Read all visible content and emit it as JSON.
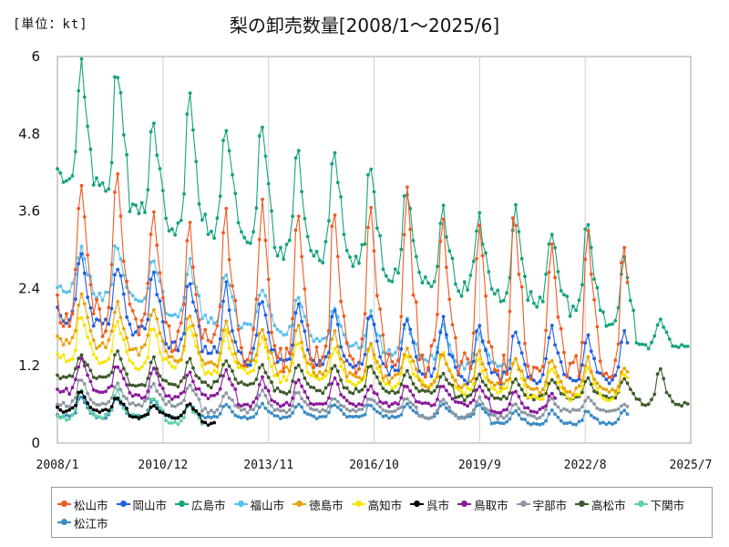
{
  "chart_data": {
    "type": "line",
    "title": "梨の卸売数量[2008/1～2025/6]",
    "unit_label": "[単位：kt]",
    "ylim": [
      0,
      6
    ],
    "y_ticks": [
      "0",
      "1.2",
      "2.4",
      "3.6",
      "4.8",
      "6"
    ],
    "y_tick_values": [
      0,
      1.2,
      2.4,
      3.6,
      4.8,
      6
    ],
    "x_ticks": [
      "2008/1",
      "2010/12",
      "2013/11",
      "2016/10",
      "2019/9",
      "2022/8",
      "2025/7"
    ],
    "x_tick_months": [
      0,
      35,
      70,
      105,
      140,
      175,
      210
    ],
    "x_range_months": [
      0,
      210
    ],
    "grid": "vertical",
    "legend_position": "bottom",
    "series": [
      {
        "name": "松山市",
        "color": "#f05a22",
        "start": 0,
        "end": 189,
        "yearly_peak": [
          3.9,
          4.2,
          3.6,
          3.4,
          3.6,
          3.6,
          3.4,
          3.6,
          3.7,
          3.8,
          3.6,
          3.4,
          3.6,
          3.1,
          3.2,
          3.0
        ],
        "yearly_base": [
          1.9,
          1.9,
          1.8,
          1.6,
          1.5,
          1.4,
          1.3,
          1.3,
          1.3,
          1.3,
          1.2,
          1.2,
          1.1,
          1.1,
          1.1,
          1.0
        ]
      },
      {
        "name": "岡山市",
        "color": "#1f5fe0",
        "start": 0,
        "end": 189,
        "yearly_peak": [
          2.9,
          2.8,
          2.7,
          2.5,
          2.4,
          2.3,
          2.1,
          2.0,
          2.0,
          2.0,
          1.9,
          1.9,
          1.8,
          1.8,
          1.7,
          1.7
        ],
        "yearly_base": [
          1.9,
          1.8,
          1.7,
          1.5,
          1.4,
          1.3,
          1.3,
          1.2,
          1.2,
          1.1,
          1.1,
          1.0,
          1.0,
          1.0,
          1.0,
          1.0
        ]
      },
      {
        "name": "広島市",
        "color": "#14a37a",
        "start": 0,
        "end": 209,
        "yearly_peak": [
          5.8,
          5.8,
          4.9,
          5.3,
          4.9,
          5.0,
          4.6,
          4.6,
          4.3,
          3.9,
          3.6,
          3.5,
          3.6,
          3.3,
          3.4,
          2.8,
          1.9,
          1.8
        ],
        "yearly_base": [
          4.0,
          3.9,
          3.6,
          3.4,
          3.3,
          3.1,
          2.9,
          2.9,
          2.8,
          2.6,
          2.5,
          2.4,
          2.3,
          2.2,
          2.1,
          1.9,
          1.5,
          1.5
        ]
      },
      {
        "name": "福山市",
        "color": "#5bc0eb",
        "start": 0,
        "end": 150,
        "yearly_peak": [
          3.0,
          3.1,
          2.9,
          2.8,
          2.6,
          2.4,
          2.3,
          2.1,
          2.0,
          1.9,
          1.8,
          1.7,
          1.6
        ],
        "yearly_base": [
          2.4,
          2.3,
          2.2,
          2.0,
          1.9,
          1.8,
          1.7,
          1.6,
          1.5,
          1.4,
          1.3,
          1.2,
          1.2
        ]
      },
      {
        "name": "徳島市",
        "color": "#e8a20a",
        "start": 0,
        "end": 189,
        "yearly_peak": [
          2.3,
          2.2,
          2.1,
          2.0,
          1.9,
          1.8,
          1.8,
          1.7,
          1.6,
          1.5,
          1.4,
          1.4,
          1.3,
          1.3,
          1.3,
          1.2
        ],
        "yearly_base": [
          1.6,
          1.5,
          1.4,
          1.3,
          1.2,
          1.2,
          1.1,
          1.1,
          1.0,
          1.0,
          0.9,
          0.9,
          0.9,
          0.8,
          0.8,
          0.8
        ]
      },
      {
        "name": "高知市",
        "color": "#f5e600",
        "start": 0,
        "end": 189,
        "yearly_peak": [
          2.0,
          1.9,
          1.8,
          1.8,
          1.7,
          1.6,
          1.6,
          1.5,
          1.5,
          1.4,
          1.4,
          1.3,
          1.3,
          1.2,
          1.2,
          1.1
        ],
        "yearly_base": [
          1.3,
          1.3,
          1.2,
          1.2,
          1.1,
          1.1,
          1.0,
          1.0,
          0.9,
          0.9,
          0.9,
          0.8,
          0.8,
          0.7,
          0.7,
          0.7
        ]
      },
      {
        "name": "呉市",
        "color": "#000000",
        "start": 0,
        "end": 52,
        "yearly_peak": [
          0.8,
          0.7,
          0.6,
          0.6,
          0.5
        ],
        "yearly_base": [
          0.5,
          0.5,
          0.4,
          0.4,
          0.3
        ]
      },
      {
        "name": "鳥取市",
        "color": "#8a1a9b",
        "start": 0,
        "end": 165,
        "yearly_peak": [
          1.3,
          1.2,
          1.2,
          1.1,
          1.1,
          1.0,
          1.0,
          1.0,
          0.9,
          0.9,
          0.9,
          0.9,
          0.8,
          0.8
        ],
        "yearly_base": [
          0.8,
          0.8,
          0.7,
          0.7,
          0.7,
          0.6,
          0.6,
          0.6,
          0.6,
          0.6,
          0.6,
          0.6,
          0.5,
          0.5
        ]
      },
      {
        "name": "宇部市",
        "color": "#8c97a3",
        "start": 0,
        "end": 189,
        "yearly_peak": [
          1.0,
          0.9,
          0.9,
          0.9,
          0.8,
          0.8,
          0.8,
          0.7,
          0.7,
          0.7,
          0.7,
          0.7,
          0.6,
          0.7,
          0.7,
          0.6
        ],
        "yearly_base": [
          0.6,
          0.6,
          0.6,
          0.6,
          0.5,
          0.5,
          0.5,
          0.5,
          0.5,
          0.5,
          0.4,
          0.4,
          0.4,
          0.4,
          0.5,
          0.5
        ]
      },
      {
        "name": "高松市",
        "color": "#3d5a2a",
        "start": 0,
        "end": 209,
        "yearly_peak": [
          1.4,
          1.4,
          1.3,
          1.3,
          1.3,
          1.2,
          1.2,
          1.2,
          1.2,
          1.1,
          1.1,
          1.1,
          1.0,
          1.0,
          1.0,
          1.0,
          1.1,
          0.9
        ],
        "yearly_base": [
          1.0,
          1.0,
          0.9,
          0.9,
          0.9,
          0.9,
          0.8,
          0.8,
          0.8,
          0.8,
          0.8,
          0.7,
          0.7,
          0.7,
          0.7,
          0.7,
          0.6,
          0.6
        ]
      },
      {
        "name": "下関市",
        "color": "#5fd1a5",
        "start": 0,
        "end": 48,
        "yearly_peak": [
          0.8,
          0.8,
          0.7,
          0.6
        ],
        "yearly_base": [
          0.4,
          0.4,
          0.4,
          0.3
        ]
      },
      {
        "name": "松江市",
        "color": "#3a8cc4",
        "start": 0,
        "end": 189,
        "yearly_peak": [
          0.7,
          0.7,
          0.7,
          0.6,
          0.6,
          0.6,
          0.6,
          0.6,
          0.6,
          0.6,
          0.6,
          0.6,
          0.5,
          0.5,
          0.5,
          0.5
        ],
        "yearly_base": [
          0.4,
          0.4,
          0.4,
          0.4,
          0.4,
          0.4,
          0.4,
          0.4,
          0.4,
          0.4,
          0.4,
          0.4,
          0.3,
          0.3,
          0.3,
          0.3
        ]
      }
    ]
  }
}
